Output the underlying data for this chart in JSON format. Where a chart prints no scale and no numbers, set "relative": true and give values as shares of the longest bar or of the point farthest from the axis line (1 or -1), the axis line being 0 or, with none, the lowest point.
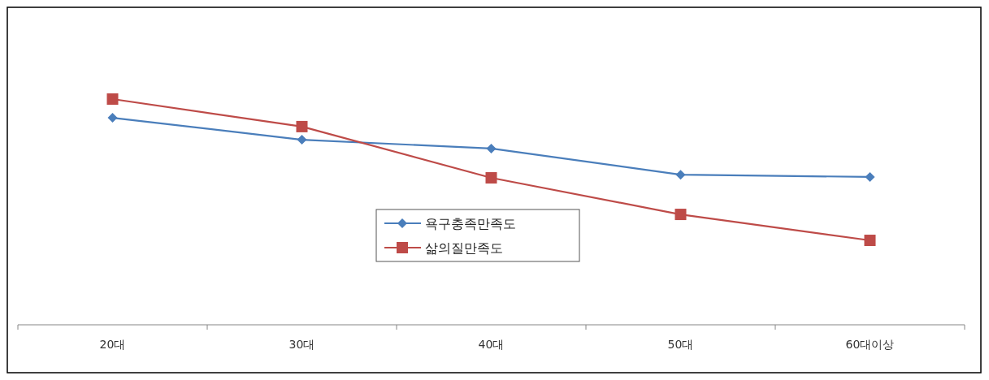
{
  "chart_data": {
    "type": "line",
    "relative": true,
    "categories": [
      "20대",
      "30대",
      "40대",
      "50대",
      "60대이상"
    ],
    "series": [
      {
        "name": "욕구충족만족도",
        "color": "#4a7ebb",
        "marker": "diamond",
        "values": [
          0.917,
          0.82,
          0.781,
          0.665,
          0.655
        ]
      },
      {
        "name": "삶의질만족도",
        "color": "#be4b48",
        "marker": "square",
        "values": [
          1,
          0.878,
          0.651,
          0.489,
          0.374
        ]
      }
    ],
    "legend": "center",
    "line_style": "solid"
  }
}
